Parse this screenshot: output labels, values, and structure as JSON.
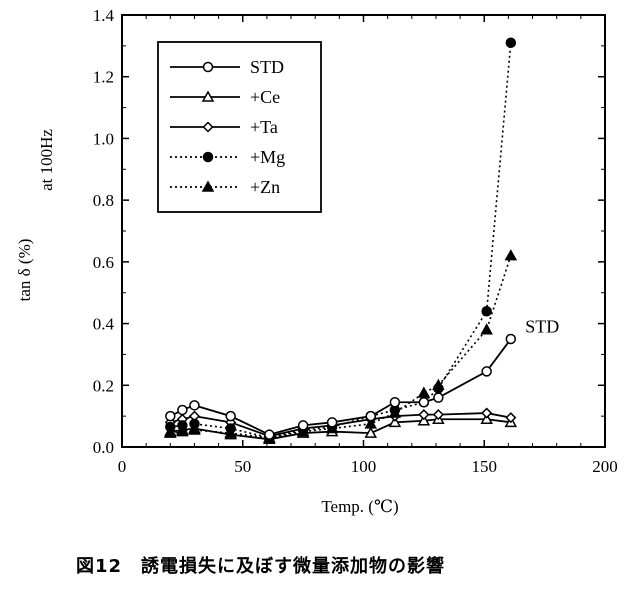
{
  "chart_data": {
    "type": "line",
    "xlabel": "Temp. (℃)",
    "ylabel_main": "tan δ (%)",
    "ylabel_sub": "at 100Hz",
    "xlim": [
      0,
      200
    ],
    "ylim": [
      0,
      1.4
    ],
    "x_ticks": [
      0,
      50,
      100,
      150,
      200
    ],
    "x_tick_labels": [
      "0",
      "50",
      "100",
      "150",
      "200"
    ],
    "y_ticks": [
      0,
      0.2,
      0.4,
      0.6,
      0.8,
      1.0,
      1.2,
      1.4
    ],
    "y_tick_labels": [
      "0.0",
      "0.2",
      "0.4",
      "0.6",
      "0.8",
      "1.0",
      "1.2",
      "1.4"
    ],
    "legend_position": "top-left",
    "series": [
      {
        "name": "STD",
        "style": "solid",
        "marker": "open-circle",
        "x": [
          20,
          25,
          30,
          45,
          61,
          75,
          87,
          103,
          113,
          125,
          131,
          151,
          161
        ],
        "y": [
          0.1,
          0.12,
          0.135,
          0.1,
          0.04,
          0.07,
          0.08,
          0.1,
          0.145,
          0.145,
          0.16,
          0.245,
          0.35
        ]
      },
      {
        "name": "+Ce",
        "style": "solid",
        "marker": "open-triangle",
        "x": [
          20,
          25,
          30,
          45,
          61,
          75,
          87,
          103,
          113,
          125,
          131,
          151,
          161
        ],
        "y": [
          0.05,
          0.055,
          0.06,
          0.04,
          0.025,
          0.045,
          0.05,
          0.045,
          0.08,
          0.085,
          0.09,
          0.09,
          0.08
        ]
      },
      {
        "name": "+Ta",
        "style": "solid",
        "marker": "open-diamond",
        "x": [
          20,
          25,
          30,
          45,
          61,
          75,
          87,
          103,
          113,
          125,
          131,
          151,
          161
        ],
        "y": [
          0.08,
          0.09,
          0.1,
          0.08,
          0.035,
          0.06,
          0.07,
          0.09,
          0.1,
          0.105,
          0.105,
          0.11,
          0.095
        ]
      },
      {
        "name": "+Mg",
        "style": "dotted",
        "marker": "filled-circle",
        "x": [
          20,
          25,
          30,
          45,
          61,
          75,
          87,
          103,
          113,
          125,
          131,
          151,
          161
        ],
        "y": [
          0.065,
          0.07,
          0.075,
          0.06,
          0.03,
          0.055,
          0.065,
          0.1,
          0.12,
          0.145,
          0.19,
          0.44,
          1.31
        ]
      },
      {
        "name": "+Zn",
        "style": "dotted",
        "marker": "filled-triangle",
        "x": [
          20,
          25,
          30,
          45,
          61,
          75,
          87,
          103,
          113,
          125,
          131,
          151,
          161
        ],
        "y": [
          0.045,
          0.05,
          0.055,
          0.045,
          0.03,
          0.05,
          0.06,
          0.075,
          0.11,
          0.175,
          0.2,
          0.38,
          0.62
        ]
      }
    ],
    "annotations": [
      {
        "text": "STD",
        "x": 167,
        "y": 0.39
      }
    ]
  },
  "caption": "図12　誘電損失に及ぼす微量添加物の影響"
}
